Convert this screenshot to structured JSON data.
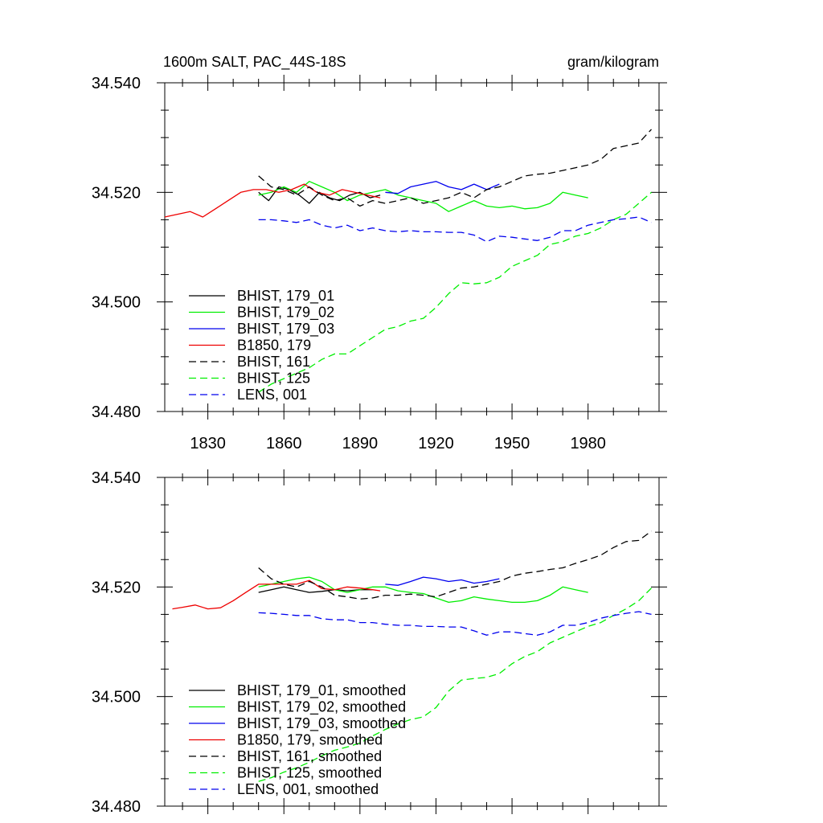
{
  "chart_data": [
    {
      "type": "line",
      "title": "1600m SALT, PAC_44S-18S",
      "units": "gram/kilogram",
      "xlabel": "",
      "ylabel": "",
      "xlim": [
        1813,
        2008
      ],
      "ylim": [
        34.48,
        34.54
      ],
      "yticks": [
        "34.480",
        "34.500",
        "34.520",
        "34.540"
      ],
      "xticks": [
        "1830",
        "1860",
        "1890",
        "1920",
        "1950",
        "1980"
      ],
      "legend_position": "bottom-left",
      "series": [
        {
          "name": "BHIST, 179_01",
          "color": "#000000",
          "dash": "solid",
          "x": [
            1850,
            1854,
            1858,
            1862,
            1866,
            1870,
            1874,
            1878,
            1882,
            1886,
            1890,
            1894,
            1898
          ],
          "y": [
            34.52,
            34.5185,
            34.521,
            34.5205,
            34.5195,
            34.518,
            34.52,
            34.519,
            34.5185,
            34.5195,
            34.52,
            34.519,
            34.5195
          ]
        },
        {
          "name": "BHIST, 179_02",
          "color": "#00ee00",
          "dash": "solid",
          "x": [
            1850,
            1855,
            1860,
            1865,
            1870,
            1875,
            1880,
            1885,
            1890,
            1895,
            1900,
            1905,
            1910,
            1915,
            1920,
            1925,
            1930,
            1935,
            1940,
            1945,
            1950,
            1955,
            1960,
            1965,
            1970,
            1975,
            1980
          ],
          "y": [
            34.5195,
            34.52,
            34.521,
            34.52,
            34.522,
            34.521,
            34.52,
            34.5185,
            34.5195,
            34.52,
            34.5205,
            34.5195,
            34.519,
            34.5185,
            34.518,
            34.5165,
            34.5175,
            34.5185,
            34.5175,
            34.5172,
            34.5175,
            34.517,
            34.5172,
            34.518,
            34.52,
            34.5195,
            34.519
          ]
        },
        {
          "name": "BHIST, 179_03",
          "color": "#0000ee",
          "dash": "solid",
          "x": [
            1900,
            1905,
            1910,
            1915,
            1920,
            1925,
            1930,
            1935,
            1940,
            1945
          ],
          "y": [
            34.52,
            34.5198,
            34.521,
            34.5215,
            34.522,
            34.521,
            34.5205,
            34.5215,
            34.5205,
            34.5215
          ]
        },
        {
          "name": "B1850, 179",
          "color": "#ee0000",
          "dash": "solid",
          "x": [
            1813,
            1818,
            1823,
            1828,
            1833,
            1838,
            1843,
            1848,
            1853,
            1858,
            1863,
            1868,
            1873,
            1878,
            1883,
            1888,
            1893,
            1898
          ],
          "y": [
            34.5155,
            34.516,
            34.5165,
            34.5155,
            34.517,
            34.5185,
            34.52,
            34.5205,
            34.5205,
            34.52,
            34.5205,
            34.5215,
            34.52,
            34.5195,
            34.5205,
            34.52,
            34.5195,
            34.519
          ]
        },
        {
          "name": "BHIST, 161",
          "color": "#000000",
          "dash": "dashed",
          "x": [
            1850,
            1855,
            1860,
            1865,
            1870,
            1875,
            1880,
            1885,
            1890,
            1895,
            1900,
            1905,
            1910,
            1915,
            1920,
            1925,
            1930,
            1935,
            1940,
            1945,
            1950,
            1955,
            1960,
            1965,
            1970,
            1975,
            1980,
            1985,
            1990,
            1995,
            2000,
            2005
          ],
          "y": [
            34.523,
            34.521,
            34.5205,
            34.5195,
            34.521,
            34.5195,
            34.5185,
            34.519,
            34.5175,
            34.5185,
            34.518,
            34.5185,
            34.519,
            34.518,
            34.5185,
            34.519,
            34.52,
            34.519,
            34.5205,
            34.521,
            34.522,
            34.523,
            34.5233,
            34.5235,
            34.524,
            34.5245,
            34.525,
            34.526,
            34.528,
            34.5285,
            34.529,
            34.5315
          ]
        },
        {
          "name": "BHIST, 125",
          "color": "#00ee00",
          "dash": "dashed",
          "x": [
            1850,
            1855,
            1860,
            1865,
            1870,
            1875,
            1880,
            1885,
            1890,
            1895,
            1900,
            1905,
            1910,
            1915,
            1920,
            1925,
            1930,
            1935,
            1940,
            1945,
            1950,
            1955,
            1960,
            1965,
            1970,
            1975,
            1980,
            1985,
            1990,
            1995,
            2000,
            2005
          ],
          "y": [
            34.4835,
            34.485,
            34.486,
            34.487,
            34.488,
            34.4895,
            34.4905,
            34.4905,
            34.492,
            34.4935,
            34.495,
            34.4955,
            34.4965,
            34.497,
            34.499,
            34.5015,
            34.5035,
            34.5033,
            34.5035,
            34.5045,
            34.5065,
            34.5075,
            34.5085,
            34.5105,
            34.511,
            34.512,
            34.5125,
            34.5135,
            34.515,
            34.516,
            34.518,
            34.52
          ]
        },
        {
          "name": "LENS, 001",
          "color": "#0000ee",
          "dash": "dashed",
          "x": [
            1850,
            1855,
            1860,
            1865,
            1870,
            1875,
            1880,
            1885,
            1890,
            1895,
            1900,
            1905,
            1910,
            1915,
            1920,
            1925,
            1930,
            1935,
            1940,
            1945,
            1950,
            1955,
            1960,
            1965,
            1970,
            1975,
            1980,
            1985,
            1990,
            1995,
            2000,
            2005
          ],
          "y": [
            34.515,
            34.515,
            34.5148,
            34.5145,
            34.515,
            34.514,
            34.5135,
            34.514,
            34.513,
            34.5135,
            34.513,
            34.5128,
            34.513,
            34.5128,
            34.5128,
            34.5127,
            34.5127,
            34.5122,
            34.511,
            34.512,
            34.5118,
            34.5115,
            34.5112,
            34.5118,
            34.513,
            34.513,
            34.514,
            34.5145,
            34.515,
            34.5152,
            34.5155,
            34.5145
          ]
        }
      ]
    },
    {
      "type": "line",
      "title": "",
      "xlabel": "",
      "ylabel": "",
      "xlim": [
        1813,
        2008
      ],
      "ylim": [
        34.48,
        34.54
      ],
      "yticks": [
        "34.480",
        "34.500",
        "34.520",
        "34.540"
      ],
      "legend_position": "bottom-left",
      "series": [
        {
          "name": "BHIST, 179_01, smoothed",
          "color": "#000000",
          "dash": "solid",
          "x": [
            1850,
            1855,
            1860,
            1865,
            1870,
            1875,
            1880,
            1885,
            1890,
            1895
          ],
          "y": [
            34.519,
            34.5195,
            34.52,
            34.5195,
            34.519,
            34.5192,
            34.5195,
            34.5193,
            34.5195,
            34.5195
          ]
        },
        {
          "name": "BHIST, 179_02, smoothed",
          "color": "#00ee00",
          "dash": "solid",
          "x": [
            1850,
            1855,
            1860,
            1865,
            1870,
            1875,
            1880,
            1885,
            1890,
            1895,
            1900,
            1905,
            1910,
            1915,
            1920,
            1925,
            1930,
            1935,
            1940,
            1945,
            1950,
            1955,
            1960,
            1965,
            1970,
            1975,
            1980
          ],
          "y": [
            34.52,
            34.5205,
            34.521,
            34.5215,
            34.5218,
            34.521,
            34.5195,
            34.519,
            34.5195,
            34.52,
            34.52,
            34.5193,
            34.519,
            34.5188,
            34.518,
            34.5172,
            34.5175,
            34.5182,
            34.5178,
            34.5175,
            34.5172,
            34.5172,
            34.5175,
            34.5185,
            34.52,
            34.5195,
            34.519
          ]
        },
        {
          "name": "BHIST, 179_03, smoothed",
          "color": "#0000ee",
          "dash": "solid",
          "x": [
            1900,
            1905,
            1910,
            1915,
            1920,
            1925,
            1930,
            1935,
            1940,
            1945
          ],
          "y": [
            34.5205,
            34.5203,
            34.521,
            34.5218,
            34.5215,
            34.521,
            34.5213,
            34.5207,
            34.521,
            34.5215
          ]
        },
        {
          "name": "B1850, 179, smoothed",
          "color": "#ee0000",
          "dash": "solid",
          "x": [
            1816,
            1820,
            1825,
            1830,
            1835,
            1840,
            1845,
            1850,
            1855,
            1860,
            1865,
            1870,
            1875,
            1880,
            1885,
            1890,
            1895,
            1898
          ],
          "y": [
            34.516,
            34.5163,
            34.5167,
            34.516,
            34.5162,
            34.5175,
            34.519,
            34.5205,
            34.5205,
            34.5205,
            34.5205,
            34.5212,
            34.5197,
            34.5195,
            34.52,
            34.5198,
            34.5195,
            34.5193
          ]
        },
        {
          "name": "BHIST, 161, smoothed",
          "color": "#000000",
          "dash": "dashed",
          "x": [
            1850,
            1855,
            1860,
            1865,
            1870,
            1875,
            1880,
            1885,
            1890,
            1895,
            1900,
            1905,
            1910,
            1915,
            1920,
            1925,
            1930,
            1935,
            1940,
            1945,
            1950,
            1955,
            1960,
            1965,
            1970,
            1975,
            1980,
            1985,
            1990,
            1995,
            2000,
            2005
          ],
          "y": [
            34.5235,
            34.5215,
            34.5205,
            34.52,
            34.521,
            34.52,
            34.5185,
            34.5182,
            34.5178,
            34.518,
            34.5185,
            34.5185,
            34.5187,
            34.5185,
            34.5182,
            34.519,
            34.5198,
            34.52,
            34.5205,
            34.521,
            34.522,
            34.5225,
            34.5228,
            34.5232,
            34.5235,
            34.5243,
            34.525,
            34.5258,
            34.5272,
            34.5283,
            34.5285,
            34.5302
          ]
        },
        {
          "name": "BHIST, 125, smoothed",
          "color": "#00ee00",
          "dash": "dashed",
          "x": [
            1850,
            1855,
            1860,
            1865,
            1870,
            1875,
            1880,
            1885,
            1890,
            1895,
            1900,
            1905,
            1910,
            1915,
            1920,
            1925,
            1930,
            1935,
            1940,
            1945,
            1950,
            1955,
            1960,
            1965,
            1970,
            1975,
            1980,
            1985,
            1990,
            1995,
            2000,
            2005
          ],
          "y": [
            34.4845,
            34.4852,
            34.4862,
            34.487,
            34.488,
            34.4892,
            34.4902,
            34.4908,
            34.4915,
            34.4928,
            34.494,
            34.495,
            34.4958,
            34.4963,
            34.498,
            34.501,
            34.503,
            34.5033,
            34.5035,
            34.5042,
            34.506,
            34.5073,
            34.5082,
            34.5098,
            34.5108,
            34.5118,
            34.5128,
            34.5135,
            34.5148,
            34.516,
            34.5175,
            34.5198
          ]
        },
        {
          "name": "LENS, 001, smoothed",
          "color": "#0000ee",
          "dash": "dashed",
          "x": [
            1850,
            1855,
            1860,
            1865,
            1870,
            1875,
            1880,
            1885,
            1890,
            1895,
            1900,
            1905,
            1910,
            1915,
            1920,
            1925,
            1930,
            1935,
            1940,
            1945,
            1950,
            1955,
            1960,
            1965,
            1970,
            1975,
            1980,
            1985,
            1990,
            1995,
            2000,
            2005
          ],
          "y": [
            34.5153,
            34.5152,
            34.515,
            34.5148,
            34.5148,
            34.5142,
            34.514,
            34.514,
            34.5135,
            34.5135,
            34.5132,
            34.513,
            34.513,
            34.5128,
            34.5128,
            34.5127,
            34.5127,
            34.512,
            34.5112,
            34.5118,
            34.5118,
            34.5115,
            34.5112,
            34.5118,
            34.513,
            34.513,
            34.5135,
            34.5143,
            34.5148,
            34.5152,
            34.5155,
            34.515
          ]
        }
      ]
    }
  ]
}
